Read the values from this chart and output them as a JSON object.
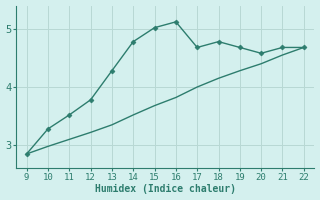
{
  "x": [
    9,
    10,
    11,
    12,
    13,
    14,
    15,
    16,
    17,
    18,
    19,
    20,
    21,
    22
  ],
  "line1_y": [
    2.85,
    3.28,
    3.52,
    3.78,
    4.28,
    4.78,
    5.02,
    5.12,
    4.68,
    4.78,
    4.68,
    4.58,
    4.68,
    4.68
  ],
  "line2_y": [
    2.85,
    2.98,
    3.1,
    3.22,
    3.35,
    3.52,
    3.68,
    3.82,
    4.0,
    4.15,
    4.28,
    4.4,
    4.55,
    4.68
  ],
  "line_color": "#2d7d6e",
  "bg_color": "#d4f0ee",
  "grid_color": "#b8d8d4",
  "xlabel": "Humidex (Indice chaleur)",
  "xlabel_color": "#2d7d6e",
  "ylim": [
    2.6,
    5.4
  ],
  "xlim": [
    8.5,
    22.5
  ],
  "yticks": [
    3,
    4,
    5
  ],
  "xticks": [
    9,
    10,
    11,
    12,
    13,
    14,
    15,
    16,
    17,
    18,
    19,
    20,
    21,
    22
  ],
  "marker": "D",
  "marker_size": 2.5,
  "line_width": 1.0
}
